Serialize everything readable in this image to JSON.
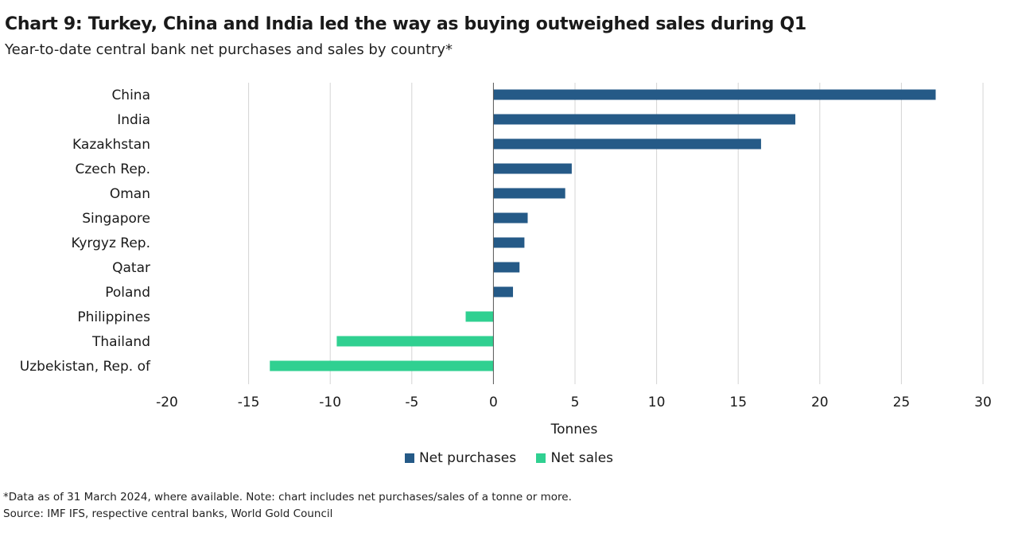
{
  "chart_data": {
    "type": "bar",
    "orientation": "horizontal",
    "title": "Chart 9: Turkey, China and India led the way as buying outweighed sales during Q1",
    "subtitle": "Year-to-date central bank net purchases and sales by country*",
    "categories": [
      "China",
      "India",
      "Kazakhstan",
      "Czech Rep.",
      "Oman",
      "Singapore",
      "Kyrgyz Rep.",
      "Qatar",
      "Poland",
      "Philippines",
      "Thailand",
      "Uzbekistan, Rep. of"
    ],
    "values": [
      27.1,
      18.5,
      16.4,
      4.8,
      4.4,
      2.1,
      1.9,
      1.6,
      1.2,
      -1.7,
      -9.6,
      -13.7
    ],
    "xlabel": "Tonnes",
    "ylabel": "",
    "xlim": [
      -20,
      30
    ],
    "xticks": [
      "-20",
      "-15",
      "-10",
      "-5",
      "0",
      "5",
      "10",
      "15",
      "20",
      "25",
      "30"
    ],
    "grid": true,
    "legend_position": "bottom",
    "series": [
      {
        "name": "Net purchases",
        "color": "#255A87"
      },
      {
        "name": "Net sales",
        "color": "#30D091"
      }
    ],
    "note": "*Data as of 31 March 2024, where available. Note: chart includes net purchases/sales of a tonne or more.",
    "source": "Source: IMF IFS, respective central banks, World Gold Council"
  }
}
